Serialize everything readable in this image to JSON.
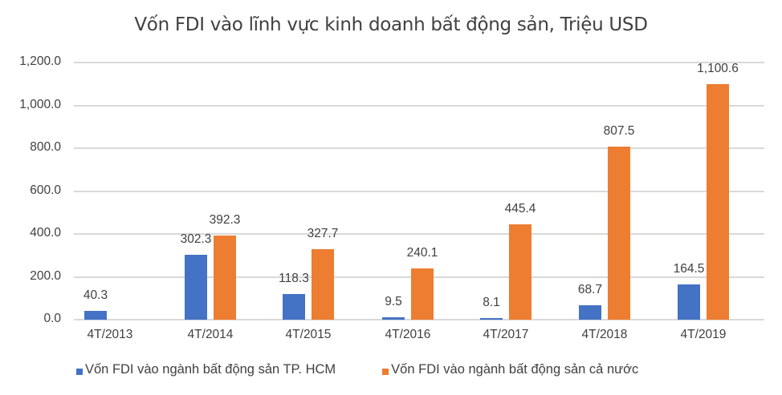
{
  "chart_data": {
    "type": "bar",
    "title": "Vốn FDI vào lĩnh vực kinh doanh bất động sản, Triệu USD",
    "xlabel": "",
    "ylabel": "",
    "ylim": [
      0,
      1200
    ],
    "yticks": [
      "0.0",
      "200.0",
      "400.0",
      "600.0",
      "800.0",
      "1,000.0",
      "1,200.0"
    ],
    "grid": true,
    "legend_position": "bottom",
    "categories": [
      "4T/2013",
      "4T/2014",
      "4T/2015",
      "4T/2016",
      "4T/2017",
      "4T/2018",
      "4T/2019"
    ],
    "series": [
      {
        "name": "Vốn FDI vào ngành bất động sản TP. HCM",
        "color": "#4472c4",
        "values": [
          40.3,
          302.3,
          118.3,
          9.5,
          8.1,
          68.7,
          164.5
        ],
        "labels": [
          "40.3",
          "302.3",
          "118.3",
          "9.5",
          "8.1",
          "68.7",
          "164.5"
        ]
      },
      {
        "name": "Vốn FDI vào ngành bất động sản cả nước",
        "color": "#ed7d31",
        "values": [
          null,
          392.3,
          327.7,
          240.1,
          445.4,
          807.5,
          1100.6
        ],
        "labels": [
          "",
          "392.3",
          "327.7",
          "240.1",
          "445.4",
          "807.5",
          "1,100.6"
        ]
      }
    ]
  }
}
